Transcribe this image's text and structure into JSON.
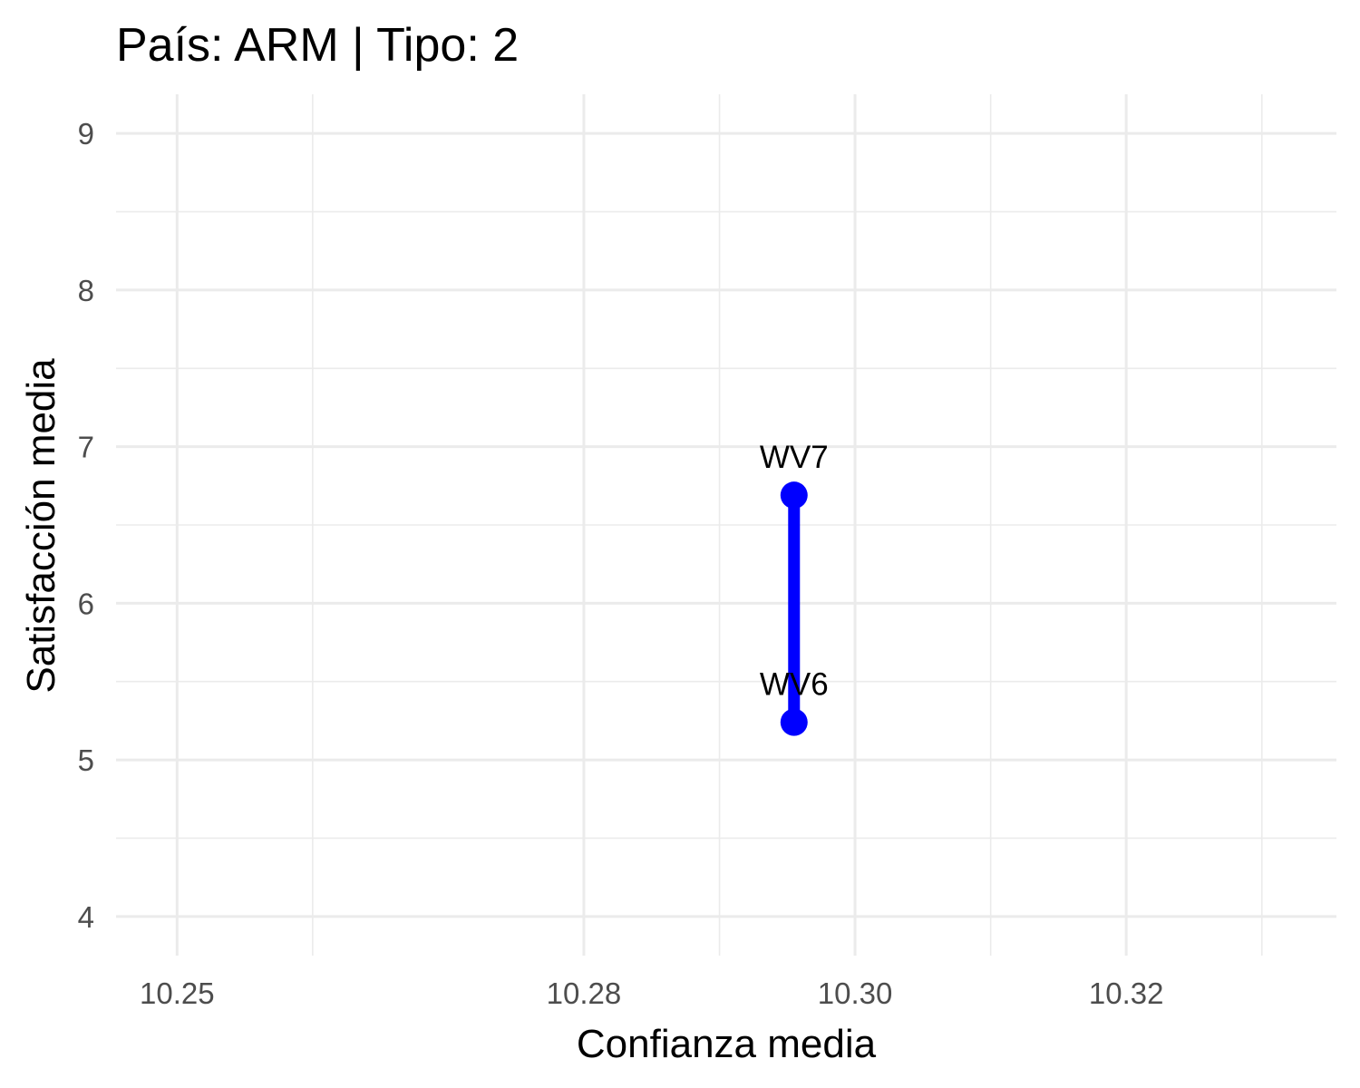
{
  "chart_data": {
    "type": "line",
    "title": "País: ARM | Tipo: 2",
    "xlabel": "Confianza media",
    "ylabel": "Satisfacción media",
    "xlim": [
      10.2455,
      10.3355
    ],
    "ylim": [
      3.75,
      9.25
    ],
    "x_ticks": [
      10.25,
      10.28,
      10.3,
      10.32
    ],
    "x_tick_labels": [
      "10.25",
      "10.28",
      "10.30",
      "10.32"
    ],
    "x_minor_ticks": [
      10.26,
      10.29,
      10.31,
      10.33
    ],
    "y_ticks": [
      4,
      5,
      6,
      7,
      8,
      9
    ],
    "y_tick_labels": [
      "4",
      "5",
      "6",
      "7",
      "8",
      "9"
    ],
    "y_minor_ticks": [
      4.5,
      5.5,
      6.5,
      7.5,
      8.5
    ],
    "grid": true,
    "series": [
      {
        "color": "#0000ff",
        "points": [
          {
            "label": "WV6",
            "x": 10.2955,
            "y": 5.24
          },
          {
            "label": "WV7",
            "x": 10.2955,
            "y": 6.69
          }
        ]
      }
    ]
  }
}
